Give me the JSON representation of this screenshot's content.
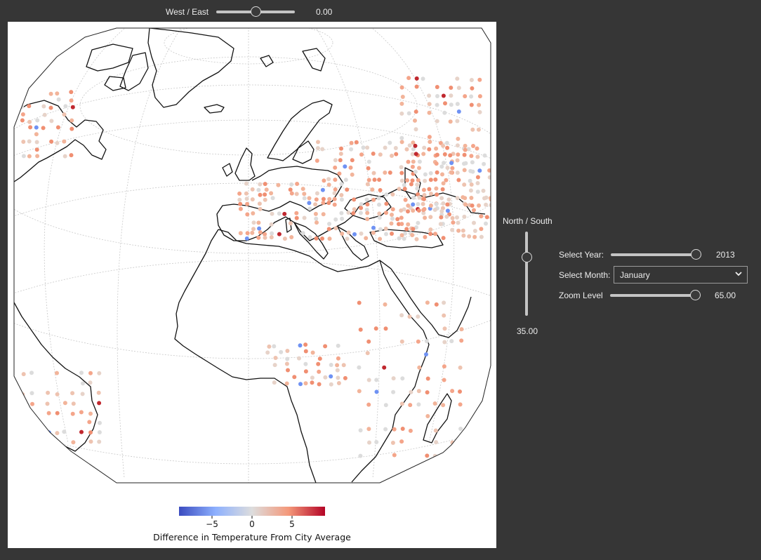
{
  "controls": {
    "west_east": {
      "label": "West / East",
      "value_text": "0.00",
      "value": 0.0,
      "fraction": 0.5
    },
    "north_south": {
      "label": "North / South",
      "value_text": "35.00",
      "value": 35.0,
      "fraction": 0.69
    },
    "year": {
      "label": "Select Year:",
      "value_text": "2013",
      "fraction": 1.0
    },
    "month": {
      "label": "Select Month:",
      "selected": "January",
      "chevron": "chevron-down-icon"
    },
    "zoom": {
      "label": "Zoom Level",
      "value_text": "65.00",
      "fraction": 1.0
    }
  },
  "colorbar": {
    "title": "Difference in Temperature From City Average",
    "ticks": [
      {
        "label": "−5",
        "value": -5
      },
      {
        "label": "0",
        "value": 0
      },
      {
        "label": "5",
        "value": 5
      }
    ],
    "range": [
      -8.5,
      8.5
    ],
    "colormap": "coolwarm",
    "colors": [
      "#3b4cc0",
      "#8db0fe",
      "#dddddd",
      "#f4987a",
      "#b40426"
    ]
  },
  "map": {
    "projection": "orthographic",
    "center_longitude": 0.0,
    "center_latitude": 35.0,
    "background": "#ffffff",
    "coastline_color": "#000000",
    "gridlines": "dashed"
  }
}
